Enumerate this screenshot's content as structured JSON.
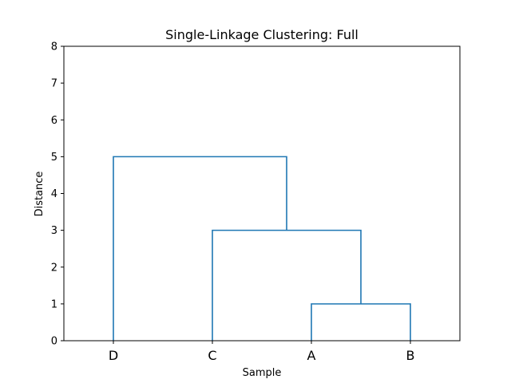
{
  "chart_data": {
    "type": "dendrogram",
    "title": "Single-Linkage Clustering: Full",
    "xlabel": "Sample",
    "ylabel": "Distance",
    "ylim": [
      0,
      8
    ],
    "yticks": [
      "0",
      "1",
      "2",
      "3",
      "4",
      "5",
      "6",
      "7",
      "8"
    ],
    "leaves": [
      "D",
      "C",
      "A",
      "B"
    ],
    "merges": [
      {
        "children": [
          "A",
          "B"
        ],
        "height": 1
      },
      {
        "children": [
          "C",
          "A+B"
        ],
        "height": 3
      },
      {
        "children": [
          "D",
          "C+A+B"
        ],
        "height": 5
      }
    ],
    "grid": false,
    "legend": "none",
    "line_color": "#1f77b4"
  }
}
